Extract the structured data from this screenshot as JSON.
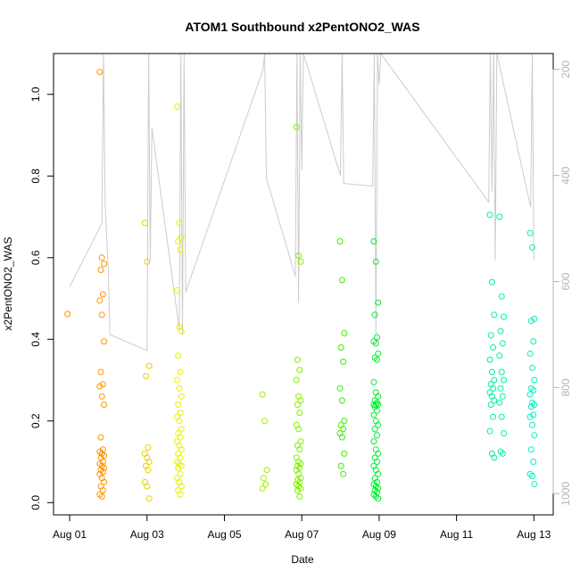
{
  "chart_data": {
    "type": "scatter",
    "title": "ATOM1 Southbound x2PentONO2_WAS",
    "xlabel": "Date",
    "ylabel": "x2PentONO2_WAS",
    "xlim": [
      "2016-07-31T14:00",
      "2016-08-13T12:00"
    ],
    "ylim": [
      -0.03,
      1.1
    ],
    "x_ticks": [
      {
        "date": "2016-08-01",
        "label": "Aug 01"
      },
      {
        "date": "2016-08-03",
        "label": "Aug 03"
      },
      {
        "date": "2016-08-05",
        "label": "Aug 05"
      },
      {
        "date": "2016-08-07",
        "label": "Aug 07"
      },
      {
        "date": "2016-08-09",
        "label": "Aug 09"
      },
      {
        "date": "2016-08-11",
        "label": "Aug 11"
      },
      {
        "date": "2016-08-13",
        "label": "Aug 13"
      }
    ],
    "y_ticks": [
      0.0,
      0.2,
      0.4,
      0.6,
      0.8,
      1.0
    ],
    "y_tick_labels": [
      "0.0",
      "0.2",
      "0.4",
      "0.6",
      "0.8",
      "1.0"
    ],
    "right_axis": {
      "ticks": [
        200,
        400,
        600,
        800,
        1000
      ],
      "tick_labels": [
        "200",
        "400",
        "600",
        "800",
        "1000"
      ],
      "range": [
        1040,
        170
      ],
      "color": "#b3b3b3"
    },
    "grid": false,
    "legend": "none",
    "marker": "open-circle",
    "point_groups": [
      {
        "date": "2016-08-01T00:00",
        "color": "#ff8c00",
        "y": [
          0.462
        ]
      },
      {
        "date": "2016-08-01T20:00",
        "color": "#ff9400",
        "y": [
          1.055,
          0.6,
          0.585,
          0.57,
          0.51,
          0.495,
          0.46,
          0.395,
          0.32,
          0.29,
          0.285,
          0.26,
          0.24,
          0.16,
          0.13,
          0.125,
          0.12,
          0.115,
          0.11,
          0.1,
          0.095,
          0.09,
          0.085,
          0.08,
          0.075,
          0.07,
          0.06,
          0.05,
          0.04,
          0.03,
          0.02,
          0.015
        ]
      },
      {
        "date": "2016-08-03T00:00",
        "color": "#e8d000",
        "y": [
          0.685,
          0.59,
          0.335,
          0.31,
          0.135,
          0.12,
          0.11,
          0.1,
          0.09,
          0.08,
          0.05,
          0.04,
          0.01
        ]
      },
      {
        "date": "2016-08-03T20:00",
        "color": "#e8f000",
        "y": [
          0.97,
          0.685,
          0.65,
          0.64,
          0.62,
          0.52,
          0.43,
          0.42,
          0.36,
          0.32,
          0.3,
          0.28,
          0.26,
          0.24,
          0.22,
          0.21,
          0.2,
          0.18,
          0.17,
          0.16,
          0.15,
          0.14,
          0.13,
          0.12,
          0.11,
          0.1,
          0.095,
          0.09,
          0.085,
          0.07,
          0.06,
          0.05,
          0.04,
          0.03,
          0.02
        ]
      },
      {
        "date": "2016-08-06T01:00",
        "color": "#9ef000",
        "y": [
          0.265,
          0.2,
          0.08,
          0.06,
          0.045,
          0.035
        ]
      },
      {
        "date": "2016-08-06T22:00",
        "color": "#80f000",
        "y": [
          0.92,
          0.605,
          0.59,
          0.35,
          0.325,
          0.3,
          0.26,
          0.25,
          0.24,
          0.22,
          0.19,
          0.18,
          0.15,
          0.14,
          0.13,
          0.11,
          0.1,
          0.095,
          0.09,
          0.085,
          0.08,
          0.07,
          0.06,
          0.055,
          0.05,
          0.045,
          0.04,
          0.035,
          0.03,
          0.015
        ]
      },
      {
        "date": "2016-08-08T01:00",
        "color": "#3af000",
        "y": [
          0.64,
          0.545,
          0.415,
          0.38,
          0.345,
          0.28,
          0.25,
          0.2,
          0.19,
          0.18,
          0.17,
          0.16,
          0.12,
          0.09,
          0.07
        ]
      },
      {
        "date": "2016-08-08T22:00",
        "color": "#00ee30",
        "y": [
          0.64,
          0.59,
          0.49,
          0.46,
          0.405,
          0.395,
          0.39,
          0.365,
          0.355,
          0.35,
          0.295,
          0.27,
          0.26,
          0.25,
          0.245,
          0.24,
          0.24,
          0.24,
          0.235,
          0.225,
          0.215,
          0.2,
          0.19,
          0.18,
          0.165,
          0.15,
          0.13,
          0.12,
          0.11,
          0.1,
          0.09,
          0.08,
          0.07,
          0.06,
          0.05,
          0.045,
          0.04,
          0.035,
          0.03,
          0.025,
          0.02,
          0.015,
          0.01
        ]
      },
      {
        "date": "2016-08-11T22:00",
        "color": "#00ee99",
        "y": [
          0.705,
          0.54,
          0.46,
          0.41,
          0.38,
          0.35,
          0.32,
          0.3,
          0.29,
          0.28,
          0.27,
          0.26,
          0.25,
          0.24,
          0.21,
          0.175,
          0.12,
          0.11
        ]
      },
      {
        "date": "2016-08-12T04:00",
        "color": "#00eeaa",
        "y": [
          0.7,
          0.505,
          0.455,
          0.42,
          0.39,
          0.36,
          0.32,
          0.3,
          0.28,
          0.26,
          0.245,
          0.21,
          0.17,
          0.125,
          0.12
        ]
      },
      {
        "date": "2016-08-12T23:00",
        "color": "#00eec0",
        "y": [
          0.66,
          0.625,
          0.45,
          0.445,
          0.395,
          0.365,
          0.33,
          0.3,
          0.28,
          0.275,
          0.265,
          0.245,
          0.24,
          0.235,
          0.215,
          0.21,
          0.19,
          0.165,
          0.13,
          0.1,
          0.07,
          0.065,
          0.045
        ]
      }
    ],
    "altitude_trace": {
      "color": "#cccccc",
      "note_units": "right axis",
      "points": [
        [
          "2016-08-01T00:00",
          610
        ],
        [
          "2016-08-01T20:00",
          490
        ],
        [
          "2016-08-01T21:00",
          170
        ],
        [
          "2016-08-01T22:00",
          450
        ],
        [
          "2016-08-01T23:00",
          520
        ],
        [
          "2016-08-02T00:00",
          580
        ],
        [
          "2016-08-02T01:00",
          700
        ],
        [
          "2016-08-03T00:00",
          730
        ],
        [
          "2016-08-03T01:00",
          170
        ],
        [
          "2016-08-03T02:00",
          560
        ],
        [
          "2016-08-03T03:00",
          310
        ],
        [
          "2016-08-03T20:00",
          690
        ],
        [
          "2016-08-03T21:00",
          170
        ],
        [
          "2016-08-03T22:00",
          700
        ],
        [
          "2016-08-03T23:00",
          170
        ],
        [
          "2016-08-04T00:00",
          620
        ],
        [
          "2016-08-06T00:00",
          200
        ],
        [
          "2016-08-06T01:00",
          170
        ],
        [
          "2016-08-06T02:00",
          405
        ],
        [
          "2016-08-06T20:00",
          590
        ],
        [
          "2016-08-06T21:00",
          170
        ],
        [
          "2016-08-06T22:00",
          640
        ],
        [
          "2016-08-06T23:00",
          170
        ],
        [
          "2016-08-07T00:00",
          390
        ],
        [
          "2016-08-07T01:00",
          170
        ],
        [
          "2016-08-08T00:00",
          400
        ],
        [
          "2016-08-08T01:00",
          170
        ],
        [
          "2016-08-08T02:00",
          415
        ],
        [
          "2016-08-08T20:00",
          420
        ],
        [
          "2016-08-08T21:00",
          170
        ],
        [
          "2016-08-08T22:00",
          700
        ],
        [
          "2016-08-08T23:00",
          170
        ],
        [
          "2016-08-09T00:00",
          230
        ],
        [
          "2016-08-09T01:00",
          170
        ],
        [
          "2016-08-11T20:00",
          450
        ],
        [
          "2016-08-11T21:00",
          170
        ],
        [
          "2016-08-11T22:00",
          430
        ],
        [
          "2016-08-11T23:00",
          170
        ],
        [
          "2016-08-12T00:00",
          560
        ],
        [
          "2016-08-12T01:00",
          170
        ],
        [
          "2016-08-12T22:00",
          460
        ],
        [
          "2016-08-12T23:00",
          170
        ],
        [
          "2016-08-13T00:00",
          560
        ]
      ]
    }
  }
}
